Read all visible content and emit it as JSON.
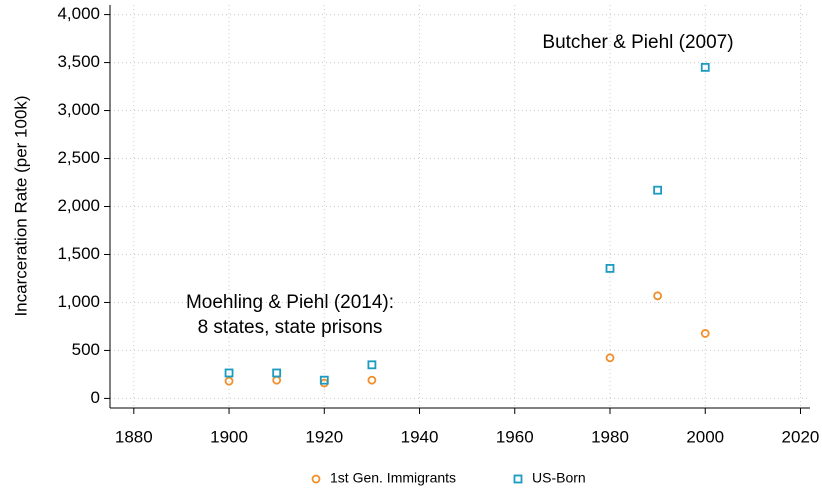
{
  "chart_data": {
    "type": "scatter",
    "y_label": "Incarceration Rate (per 100k)",
    "annotations": [
      {
        "lines": [
          "Butcher & Piehl (2007)"
        ]
      },
      {
        "lines": [
          "Moehling & Piehl (2014):",
          "8 states, state prisons"
        ]
      }
    ],
    "series": [
      {
        "name": "1st Gen. Immigrants",
        "color": "#f28e2b",
        "marker": "circle",
        "x": [
          1900,
          1910,
          1920,
          1930,
          1980,
          1990,
          2000
        ],
        "values": [
          180,
          190,
          160,
          190,
          423,
          1069,
          677
        ]
      },
      {
        "name": "US-Born",
        "color": "#1a9bbf",
        "marker": "square",
        "x": [
          1900,
          1910,
          1920,
          1930,
          1980,
          1990,
          2000
        ],
        "values": [
          265,
          265,
          190,
          350,
          1355,
          2170,
          3450
        ]
      }
    ],
    "xlim": [
      1875,
      2022
    ],
    "ylim": [
      -100,
      4100
    ],
    "xticks": [
      1880,
      1900,
      1920,
      1940,
      1960,
      1980,
      2000,
      2020
    ],
    "yticks": [
      0,
      500,
      {
        "value": 1000,
        "label": "1,000"
      },
      {
        "value": 1500,
        "label": "1,500"
      },
      {
        "value": 2000,
        "label": "2,000"
      },
      {
        "value": 2500,
        "label": "2,500"
      },
      {
        "value": 3000,
        "label": "3,000"
      },
      {
        "value": 3500,
        "label": "3,500"
      },
      {
        "value": 4000,
        "label": "4,000"
      }
    ],
    "grid": true,
    "legend": "bottom"
  }
}
